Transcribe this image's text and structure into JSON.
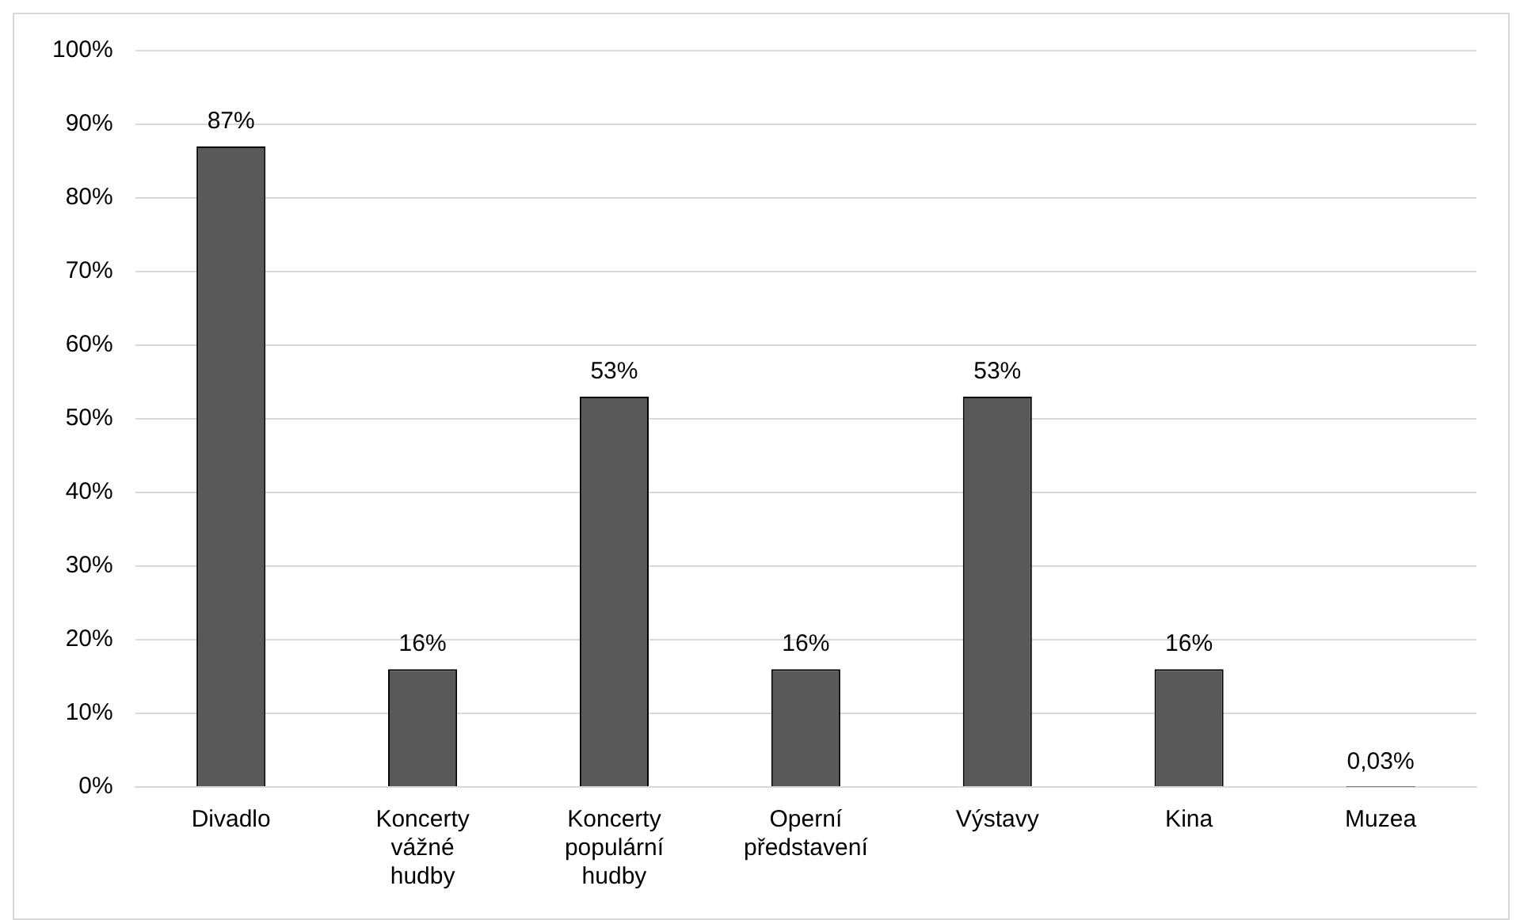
{
  "chart_data": {
    "type": "bar",
    "categories": [
      "Divadlo",
      "Koncerty vážné hudby",
      "Koncerty populární hudby",
      "Operní představení",
      "Výstavy",
      "Kina",
      "Muzea"
    ],
    "values": [
      87,
      16,
      53,
      16,
      53,
      16,
      0.03
    ],
    "value_labels": [
      "87%",
      "16%",
      "53%",
      "16%",
      "53%",
      "16%",
      "0,03%"
    ],
    "color": "#595959",
    "ylim": [
      0,
      100
    ],
    "yticks": [
      {
        "value": 0,
        "label": "0%"
      },
      {
        "value": 10,
        "label": "10%"
      },
      {
        "value": 20,
        "label": "20%"
      },
      {
        "value": 30,
        "label": "30%"
      },
      {
        "value": 40,
        "label": "40%"
      },
      {
        "value": 50,
        "label": "50%"
      },
      {
        "value": 60,
        "label": "60%"
      },
      {
        "value": 70,
        "label": "70%"
      },
      {
        "value": 80,
        "label": "80%"
      },
      {
        "value": 90,
        "label": "90%"
      },
      {
        "value": 100,
        "label": "100%"
      }
    ],
    "grid": "y",
    "legend": false
  }
}
